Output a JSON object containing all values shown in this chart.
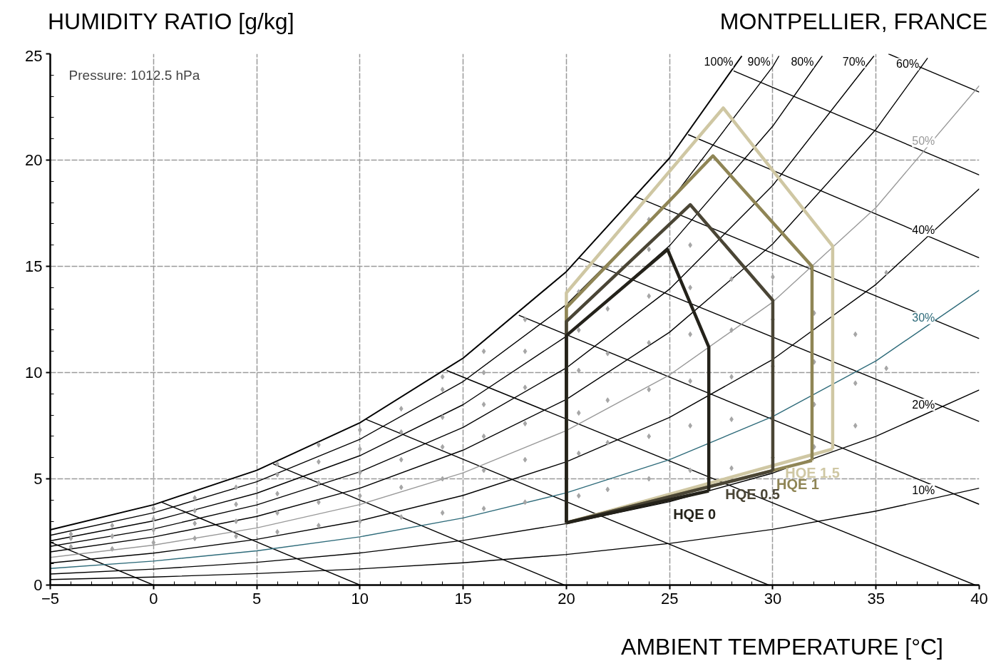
{
  "chart_data": {
    "type": "line",
    "title": "MONTPELLIER, FRANCE",
    "ylabel": "HUMIDITY RATIO [g/kg]",
    "xlabel": "AMBIENT TEMPERATURE [°C]",
    "annotations": [
      "Pressure: 1012.5 hPa"
    ],
    "xlim": [
      -5,
      40
    ],
    "ylim": [
      0,
      25
    ],
    "xticks": [
      -5,
      0,
      5,
      10,
      15,
      20,
      25,
      30,
      35,
      40
    ],
    "yticks": [
      0,
      5,
      10,
      15,
      20,
      25
    ],
    "grid": true,
    "marker": "none",
    "line_style": "solid",
    "series": [
      {
        "type": "line",
        "color": "#000000",
        "x": [
          -5,
          0
        ],
        "values": [
          2.02,
          0
        ]
      },
      {
        "type": "line",
        "color": "#000000",
        "x": [
          0.4,
          10
        ],
        "values": [
          3.9,
          0
        ]
      },
      {
        "type": "line",
        "color": "#000000",
        "x": [
          5.8,
          19.9
        ],
        "values": [
          5.7,
          0
        ]
      },
      {
        "type": "line",
        "color": "#000000",
        "x": [
          10.3,
          29.8
        ],
        "values": [
          7.8,
          0
        ]
      },
      {
        "type": "line",
        "color": "#000000",
        "x": [
          14.2,
          39.8
        ],
        "values": [
          10.1,
          0
        ]
      },
      {
        "type": "line",
        "color": "#000000",
        "x": [
          17.7,
          40
        ],
        "values": [
          12.7,
          3.8
        ]
      },
      {
        "type": "line",
        "color": "#000000",
        "x": [
          20.6,
          40
        ],
        "values": [
          15.4,
          7.7
        ]
      },
      {
        "type": "line",
        "color": "#000000",
        "x": [
          23.3,
          40
        ],
        "values": [
          18.3,
          11.6
        ]
      },
      {
        "type": "line",
        "color": "#000000",
        "x": [
          25.9,
          40
        ],
        "values": [
          21.2,
          15.4
        ]
      },
      {
        "type": "line",
        "color": "#000000",
        "x": [
          28.1,
          40
        ],
        "values": [
          24.2,
          19.3
        ]
      },
      {
        "type": "line",
        "color": "#000000",
        "x": [
          35.6,
          40
        ],
        "values": [
          25,
          23.2
        ]
      },
      {
        "type": "line",
        "name": "100%",
        "color": "#000000",
        "x": [
          -5,
          0,
          5,
          10,
          15,
          20,
          25,
          28.5
        ],
        "values": [
          2.6,
          3.78,
          5.4,
          7.64,
          10.68,
          14.75,
          20.1,
          24.9
        ]
      },
      {
        "type": "line",
        "name": "90%",
        "color": "#000000",
        "x": [
          -5,
          0,
          5,
          10,
          15,
          20,
          25,
          30,
          30.3
        ],
        "values": [
          2.34,
          3.4,
          4.86,
          6.86,
          9.58,
          13.2,
          18.03,
          24.4,
          24.9
        ]
      },
      {
        "type": "line",
        "name": "80%",
        "color": "#000000",
        "x": [
          -5,
          0,
          5,
          10,
          15,
          20,
          25,
          30,
          32.4
        ],
        "values": [
          2.08,
          3.02,
          4.32,
          6.09,
          8.49,
          11.71,
          15.97,
          21.6,
          24.9
        ]
      },
      {
        "type": "line",
        "name": "70%",
        "color": "#000000",
        "x": [
          -5,
          0,
          5,
          10,
          15,
          20,
          25,
          30,
          34.9
        ],
        "values": [
          1.82,
          2.64,
          3.77,
          5.33,
          7.42,
          10.22,
          13.93,
          18.81,
          24.9
        ]
      },
      {
        "type": "line",
        "name": "60%",
        "color": "#000000",
        "x": [
          -5,
          0,
          5,
          10,
          15,
          20,
          25,
          30,
          35,
          37.5
        ],
        "values": [
          1.56,
          2.26,
          3.23,
          4.56,
          6.35,
          8.74,
          11.9,
          16.06,
          21.45,
          24.8
        ]
      },
      {
        "type": "line",
        "name": "50%",
        "color": "#999999",
        "x": [
          -5,
          0,
          5,
          10,
          15,
          20,
          25,
          30,
          35,
          40
        ],
        "values": [
          1.3,
          1.88,
          2.69,
          3.79,
          5.28,
          7.27,
          9.89,
          13.32,
          17.77,
          23.5
        ]
      },
      {
        "type": "line",
        "name": "40%",
        "color": "#000000",
        "x": [
          -5,
          0,
          5,
          10,
          15,
          20,
          25,
          30,
          35,
          40
        ],
        "values": [
          1.04,
          1.5,
          2.15,
          3.03,
          4.22,
          5.8,
          7.89,
          10.62,
          14.15,
          18.65
        ]
      },
      {
        "type": "line",
        "name": "30%",
        "color": "#2e6b7a",
        "x": [
          -5,
          0,
          5,
          10,
          15,
          20,
          25,
          30,
          35,
          40
        ],
        "values": [
          0.78,
          1.13,
          1.61,
          2.27,
          3.16,
          4.34,
          5.9,
          7.93,
          10.55,
          13.88
        ]
      },
      {
        "type": "line",
        "name": "20%",
        "color": "#000000",
        "x": [
          -5,
          0,
          5,
          10,
          15,
          20,
          25,
          30,
          35,
          40
        ],
        "values": [
          0.52,
          0.75,
          1.07,
          1.51,
          2.1,
          2.89,
          3.92,
          5.27,
          7.0,
          9.18
        ]
      },
      {
        "type": "line",
        "name": "10%",
        "color": "#000000",
        "x": [
          -5,
          0,
          5,
          10,
          15,
          20,
          25,
          30,
          35,
          40
        ],
        "values": [
          0.26,
          0.38,
          0.54,
          0.76,
          1.05,
          1.44,
          1.96,
          2.62,
          3.48,
          4.56
        ]
      },
      {
        "type": "scatter",
        "color": "#a6a6a6",
        "marker": "diamond",
        "x": [
          -4,
          -4,
          -4,
          -2,
          -2,
          -2,
          0,
          0,
          0,
          0,
          2,
          2,
          2,
          2,
          4,
          4,
          4,
          4,
          6,
          6,
          6,
          6,
          6,
          8,
          8,
          8,
          8,
          8,
          10,
          10,
          10,
          10,
          10,
          12,
          12,
          12,
          12,
          12,
          14,
          14,
          14,
          14,
          14,
          14,
          16,
          16,
          16,
          16,
          16,
          16,
          18,
          18,
          18,
          18,
          18,
          18,
          20.6,
          20.6,
          20.6,
          20.6,
          20.6,
          20.6,
          22,
          22,
          22,
          22,
          22,
          22,
          24,
          24,
          24,
          24,
          24,
          24,
          24,
          26,
          26,
          26,
          26,
          26,
          26,
          28,
          28,
          28,
          28,
          28,
          30,
          30,
          30,
          30,
          30,
          32,
          32,
          32,
          32,
          34,
          34,
          34,
          35.5,
          35.5
        ],
        "values": [
          1.8,
          2.2,
          2.4,
          1.7,
          2.3,
          2.8,
          2.0,
          2.6,
          3.1,
          3.6,
          2.2,
          2.9,
          3.5,
          4.1,
          2.3,
          3.0,
          3.8,
          4.6,
          2.5,
          3.4,
          4.3,
          5.2,
          5.7,
          2.8,
          3.9,
          4.8,
          5.8,
          6.6,
          3.0,
          4.2,
          5.3,
          6.4,
          7.3,
          3.2,
          4.6,
          5.9,
          7.2,
          8.3,
          3.4,
          5.0,
          6.5,
          7.9,
          9.2,
          9.8,
          3.6,
          5.4,
          7.0,
          8.5,
          10.0,
          11.0,
          3.9,
          5.9,
          7.6,
          9.3,
          11.0,
          12.5,
          4.2,
          6.2,
          8.1,
          10.1,
          12.0,
          13.8,
          4.5,
          6.7,
          8.7,
          10.9,
          13.0,
          15.0,
          5.0,
          7.0,
          9.2,
          11.4,
          13.6,
          15.8,
          17.2,
          5.4,
          7.5,
          9.6,
          11.8,
          14.0,
          16.0,
          5.5,
          7.8,
          9.8,
          12.0,
          14.4,
          6.0,
          8.2,
          10.3,
          12.5,
          14.5,
          6.5,
          8.5,
          10.5,
          12.8,
          7.5,
          9.5,
          11.8,
          10.2,
          14.7
        ]
      },
      {
        "name": "HQE 1.5",
        "color": "#cfc7a3",
        "x": [
          20,
          20,
          27.6,
          32.9,
          32.9
        ],
        "values": [
          2.93,
          13.75,
          22.45,
          15.95,
          6.4
        ]
      },
      {
        "color": "#cfc7a3",
        "x": [
          20,
          32.9
        ],
        "values": [
          2.93,
          6.4
        ]
      },
      {
        "name": "HQE 1",
        "color": "#8f8555",
        "x": [
          20,
          20,
          27.1,
          31.9,
          31.9
        ],
        "values": [
          2.93,
          13.06,
          20.2,
          15.0,
          5.86
        ]
      },
      {
        "color": "#8f8555",
        "x": [
          20,
          31.9
        ],
        "values": [
          2.93,
          5.86
        ]
      },
      {
        "name": "HQE 0.5",
        "color": "#4a4535",
        "x": [
          20,
          20,
          26,
          30,
          30
        ],
        "values": [
          2.93,
          12.4,
          17.9,
          13.4,
          5.38
        ]
      },
      {
        "color": "#4a4535",
        "x": [
          20,
          30
        ],
        "values": [
          2.93,
          5.38
        ]
      },
      {
        "name": "HQE 0",
        "color": "#24221a",
        "x": [
          20,
          20,
          24.9,
          26.9,
          26.9
        ],
        "values": [
          2.93,
          11.74,
          15.79,
          11.2,
          4.43
        ]
      },
      {
        "color": "#24221a",
        "x": [
          20,
          26.9
        ],
        "values": [
          2.93,
          4.43
        ]
      }
    ]
  }
}
